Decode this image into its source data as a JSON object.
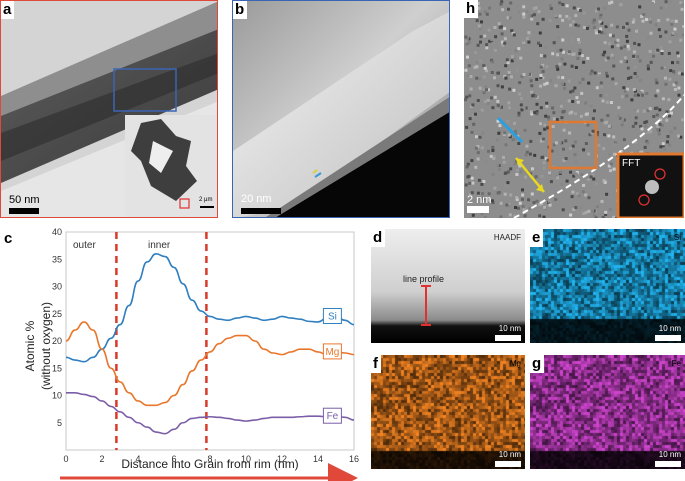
{
  "panels": {
    "a": {
      "label": "a",
      "scale": "50 nm",
      "inset_scale": "2 µm",
      "colors": {
        "border": "#e0483a",
        "box": "#3a64b4"
      }
    },
    "b": {
      "label": "b",
      "scale": "20 nm",
      "colors": {
        "border": "#3a64b4"
      }
    },
    "h": {
      "label": "h",
      "scale": "2 nm",
      "fft": "FFT",
      "colors": {
        "box": "#e07830",
        "fft_circle": "#e03030"
      }
    },
    "c": {
      "label": "c",
      "region_outer": "outer",
      "region_inner": "inner"
    },
    "d": {
      "label": "d",
      "title": "HAADF",
      "line_profile": "line profile",
      "scale": "10 nm"
    },
    "e": {
      "label": "e",
      "element": "Si",
      "scale": "10 nm",
      "color": "#1fa8e0"
    },
    "f": {
      "label": "f",
      "element": "Mg",
      "scale": "10 nm",
      "color": "#e07a20"
    },
    "g": {
      "label": "g",
      "element": "Fe",
      "scale": "10 nm",
      "color": "#c040c0"
    }
  },
  "chart_data": {
    "type": "line",
    "ylabel": "Atomic %",
    "ylabel2": "(without oxygen)",
    "xlabel": "Distance into Grain from rim (nm)",
    "xlim": [
      0,
      16
    ],
    "ylim": [
      0,
      40
    ],
    "xticks": [
      0,
      2,
      4,
      6,
      8,
      10,
      12,
      14,
      16
    ],
    "yticks": [
      5,
      10,
      15,
      20,
      25,
      30,
      35,
      40
    ],
    "boundaries": [
      2.8,
      7.8
    ],
    "series": [
      {
        "name": "Si",
        "color": "#2f7fc1",
        "x": [
          0,
          0.5,
          1,
          1.5,
          2,
          2.5,
          3,
          3.5,
          4,
          4.5,
          5,
          5.5,
          6,
          6.5,
          7,
          7.5,
          8,
          8.5,
          9,
          9.5,
          10,
          10.5,
          11,
          11.5,
          12,
          12.5,
          13,
          13.5,
          14,
          14.5,
          15,
          15.5,
          16
        ],
        "y": [
          17,
          16.5,
          16.2,
          17,
          18.5,
          20.5,
          23,
          26.5,
          31,
          34.5,
          36,
          35.5,
          33.5,
          30.5,
          27.5,
          25.5,
          24.5,
          24,
          23.8,
          24.2,
          24.5,
          24.2,
          23.8,
          24,
          24.5,
          24.2,
          24,
          23.6,
          23.5,
          24.2,
          24.5,
          23.8,
          23
        ]
      },
      {
        "name": "Mg",
        "color": "#e8772e",
        "x": [
          0,
          0.5,
          1,
          1.5,
          2,
          2.5,
          3,
          3.5,
          4,
          4.5,
          5,
          5.5,
          6,
          6.5,
          7,
          7.5,
          8,
          8.5,
          9,
          9.5,
          10,
          10.5,
          11,
          11.5,
          12,
          12.5,
          13,
          13.5,
          14,
          14.5,
          15,
          15.5,
          16
        ],
        "y": [
          20,
          22,
          23.5,
          22,
          18.5,
          15,
          12.5,
          10.5,
          9,
          8.2,
          8.2,
          8.7,
          10,
          12,
          14.5,
          16.5,
          18,
          19.5,
          20.5,
          21,
          21,
          20,
          18.5,
          17.8,
          17.5,
          18,
          18.5,
          18.5,
          18,
          17.5,
          18,
          17.8,
          17.5
        ]
      },
      {
        "name": "Fe",
        "color": "#7b5ea7",
        "x": [
          0,
          0.5,
          1,
          1.5,
          2,
          2.5,
          3,
          3.5,
          4,
          4.5,
          5,
          5.5,
          6,
          6.5,
          7,
          7.5,
          8,
          8.5,
          9,
          9.5,
          10,
          10.5,
          11,
          11.5,
          12,
          12.5,
          13,
          13.5,
          14,
          14.5,
          15,
          15.5,
          16
        ],
        "y": [
          10.5,
          10.5,
          10.2,
          9.8,
          9,
          8,
          7,
          6,
          5,
          4.2,
          3.3,
          3,
          3.8,
          5,
          5.8,
          6,
          6.1,
          6,
          5.8,
          5.5,
          5.3,
          5.5,
          5.8,
          6,
          6,
          6,
          6.1,
          6.2,
          6.2,
          6.1,
          6.2,
          6,
          5.5
        ]
      }
    ],
    "legend": "inline at right end of each line",
    "grid": false
  }
}
